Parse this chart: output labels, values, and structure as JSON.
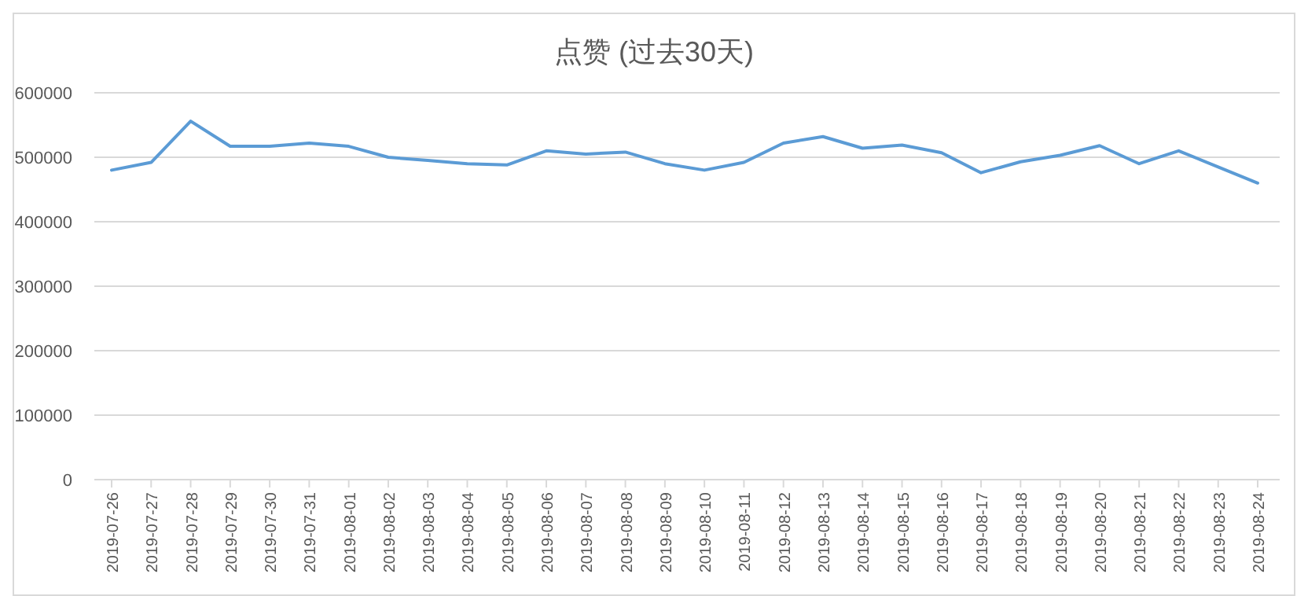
{
  "chart_data": {
    "type": "line",
    "title": "点赞 (过去30天)",
    "categories": [
      "2019-07-26",
      "2019-07-27",
      "2019-07-28",
      "2019-07-29",
      "2019-07-30",
      "2019-07-31",
      "2019-08-01",
      "2019-08-02",
      "2019-08-03",
      "2019-08-04",
      "2019-08-05",
      "2019-08-06",
      "2019-08-07",
      "2019-08-08",
      "2019-08-09",
      "2019-08-10",
      "2019-08-11",
      "2019-08-12",
      "2019-08-13",
      "2019-08-14",
      "2019-08-15",
      "2019-08-16",
      "2019-08-17",
      "2019-08-18",
      "2019-08-19",
      "2019-08-20",
      "2019-08-21",
      "2019-08-22",
      "2019-08-23",
      "2019-08-24"
    ],
    "series": [
      {
        "color": "#5b9bd5",
        "values": [
          480000,
          492000,
          556000,
          517000,
          517000,
          522000,
          517000,
          500000,
          495000,
          490000,
          488000,
          510000,
          505000,
          508000,
          490000,
          480000,
          492000,
          522000,
          532000,
          514000,
          519000,
          507000,
          476000,
          493000,
          503000,
          518000,
          490000,
          510000,
          485000,
          460000
        ]
      }
    ],
    "ylim": [
      0,
      600000
    ],
    "yticks": [
      0,
      100000,
      200000,
      300000,
      400000,
      500000,
      600000
    ],
    "grid": "y",
    "marker": "none",
    "line_style": "solid"
  }
}
